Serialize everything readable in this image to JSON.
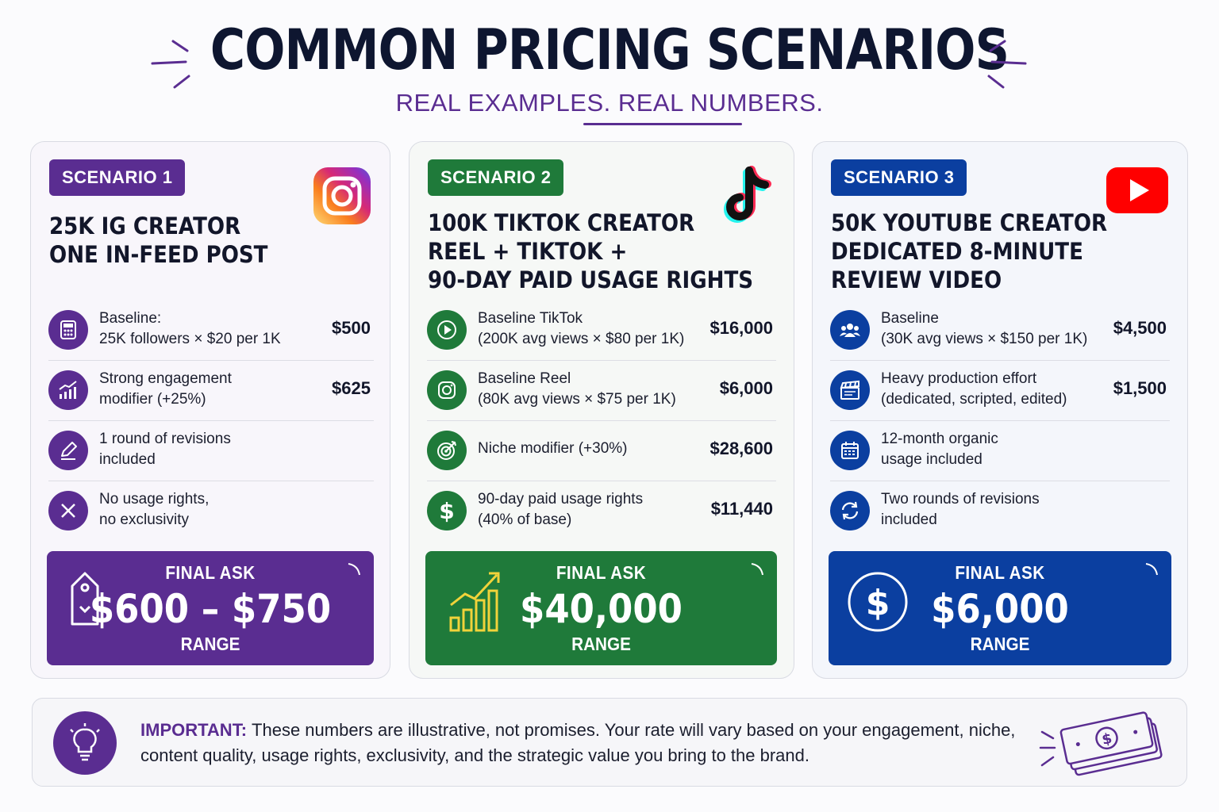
{
  "header": {
    "title": "COMMON PRICING SCENARIOS",
    "subtitle": "REAL EXAMPLES. REAL NUMBERS."
  },
  "colors": {
    "purple": "#5a2d91",
    "green": "#1f7a3a",
    "blue": "#0b3fa0",
    "navy": "#0e1630"
  },
  "scenarios": [
    {
      "badge": "SCENARIO 1",
      "platform_icon": "instagram-icon",
      "title": "25K IG CREATOR\nONE IN-FEED POST",
      "rows": [
        {
          "icon": "calculator-icon",
          "label": "Baseline:\n25K followers × $20 per 1K",
          "amount": "$500"
        },
        {
          "icon": "growth-chart-icon",
          "label": "Strong engagement\nmodifier (+25%)",
          "amount": "$625"
        },
        {
          "icon": "pencil-icon",
          "label": "1 round of revisions\nincluded",
          "amount": ""
        },
        {
          "icon": "x-icon",
          "label": "No usage rights,\nno exclusivity",
          "amount": ""
        }
      ],
      "final": {
        "label": "FINAL ASK",
        "value": "$600 – $750",
        "range": "RANGE",
        "icon": "price-tag-icon"
      }
    },
    {
      "badge": "SCENARIO 2",
      "platform_icon": "tiktok-icon",
      "title": "100K TIKTOK CREATOR\nREEL + TIKTOK +\n90-DAY PAID USAGE RIGHTS",
      "rows": [
        {
          "icon": "play-icon",
          "label": "Baseline TikTok\n(200K avg views × $80 per 1K)",
          "amount": "$16,000"
        },
        {
          "icon": "instagram-outline-icon",
          "label": "Baseline Reel\n(80K avg views × $75 per 1K)",
          "amount": "$6,000"
        },
        {
          "icon": "target-icon",
          "label": "Niche modifier (+30%)",
          "amount": "$28,600"
        },
        {
          "icon": "dollar-icon",
          "label": "90-day paid usage rights\n(40% of base)",
          "amount": "$11,440"
        }
      ],
      "final": {
        "label": "FINAL ASK",
        "value": "$40,000",
        "range": "RANGE",
        "icon": "bar-chart-icon"
      }
    },
    {
      "badge": "SCENARIO 3",
      "platform_icon": "youtube-icon",
      "title": "50K YOUTUBE CREATOR\nDEDICATED 8-MINUTE\nREVIEW VIDEO",
      "rows": [
        {
          "icon": "audience-icon",
          "label": "Baseline\n(30K avg views × $150 per 1K)",
          "amount": "$4,500"
        },
        {
          "icon": "clapperboard-icon",
          "label": "Heavy production effort\n(dedicated, scripted, edited)",
          "amount": "$1,500"
        },
        {
          "icon": "calendar-icon",
          "label": "12-month organic\nusage included",
          "amount": ""
        },
        {
          "icon": "refresh-icon",
          "label": "Two rounds of revisions\nincluded",
          "amount": ""
        }
      ],
      "final": {
        "label": "FINAL ASK",
        "value": "$6,000",
        "range": "RANGE",
        "icon": "dollar-circle-icon"
      }
    }
  ],
  "note": {
    "important": "IMPORTANT:",
    "text": "These numbers are illustrative, not promises. Your rate will vary based on your engagement, niche, content quality, usage rights, exclusivity, and the strategic value you bring to the brand.",
    "icon": "lightbulb-icon",
    "deco_icon": "money-stack-icon"
  }
}
